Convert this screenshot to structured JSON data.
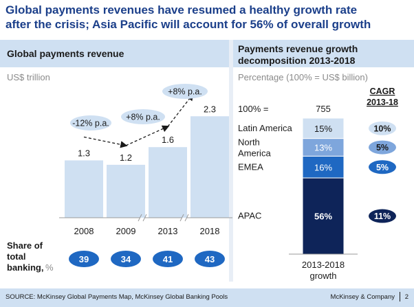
{
  "title_line1": "Global payments revenues have resumed a healthy growth rate",
  "title_line2": "after the crisis; Asia Pacific will account for 56% of overall growth",
  "left_panel": {
    "heading": "Global payments revenue",
    "unit": "US$ trillion",
    "share_label_line1": "Share of",
    "share_label_line2": "total",
    "share_label_line3": "banking,",
    "share_label_unit": " %",
    "growth_labels": [
      "-12% p.a.",
      "+8% p.a.",
      "+8% p.a."
    ]
  },
  "right_panel": {
    "heading_line1": "Payments revenue growth",
    "heading_line2": "decomposition 2013-2018",
    "unit": "Percentage (100% = US$ billion)",
    "cagr_label_line1": "CAGR",
    "cagr_label_line2": "2013-18",
    "total_label": "100% =",
    "total_value": "755",
    "bar_label_line1": "2013-2018",
    "bar_label_line2": "growth"
  },
  "footer": {
    "source": "SOURCE: McKinsey Global Payments Map, McKinsey Global Banking Pools",
    "brand": "McKinsey & Company",
    "page": "2"
  },
  "chart_data": [
    {
      "type": "bar",
      "title": "Global payments revenue",
      "ylabel": "US$ trillion",
      "categories": [
        "2008",
        "2009",
        "2013",
        "2018"
      ],
      "values": [
        1.3,
        1.2,
        1.6,
        2.3
      ],
      "value_labels": [
        "1.3",
        "1.2",
        "1.6",
        "2.3"
      ],
      "ylim": [
        0,
        2.6
      ],
      "share_of_total_banking": [
        39,
        34,
        41,
        43
      ],
      "color": "#cfe0f2"
    },
    {
      "type": "bar",
      "title": "Payments revenue growth decomposition 2013-2018",
      "stacked": true,
      "total": 755,
      "segments": [
        {
          "name": "Latin America",
          "value": 15,
          "label": "15%",
          "cagr": "10%",
          "color": "#cfe0f2",
          "text_color": "#1a1a1a",
          "cagr_color": "#cfe0f2",
          "cagr_text": "#1a1a1a"
        },
        {
          "name": "North America",
          "value": 13,
          "label": "13%",
          "cagr": "5%",
          "color": "#7ea6dc",
          "text_color": "#ffffff",
          "cagr_color": "#7ea6dc",
          "cagr_text": "#1a1a1a"
        },
        {
          "name": "EMEA",
          "value": 16,
          "label": "16%",
          "cagr": "5%",
          "color": "#1f68c2",
          "text_color": "#ffffff",
          "cagr_color": "#1f68c2",
          "cagr_text": "#ffffff"
        },
        {
          "name": "APAC",
          "value": 56,
          "label": "56%",
          "cagr": "11%",
          "color": "#0e2459",
          "text_color": "#ffffff",
          "cagr_color": "#0e2459",
          "cagr_text": "#ffffff"
        }
      ]
    }
  ],
  "colors": {
    "title": "#1b3f8a",
    "panel_head": "#cfe0f2",
    "bar_light": "#cfe0f2",
    "badge": "#1f68c2",
    "growth_oval": "#cfe0f2"
  }
}
